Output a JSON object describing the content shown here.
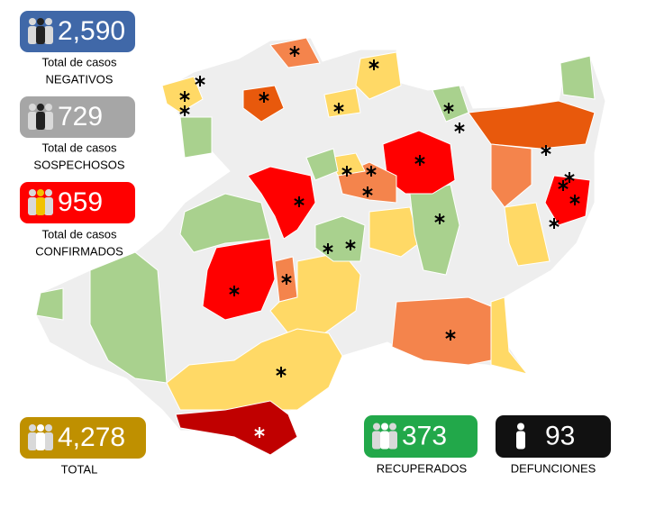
{
  "stats": [
    {
      "value": "2,590",
      "lines": [
        "Total de casos",
        "NEGATIVOS"
      ]
    },
    {
      "value": "729",
      "lines": [
        "Total de casos",
        "SOSPECHOSOS"
      ]
    },
    {
      "value": "959",
      "lines": [
        "Total de casos",
        "CONFIRMADOS"
      ]
    },
    {
      "value": "4,278",
      "lines": [
        "TOTAL"
      ]
    },
    {
      "value": "373",
      "lines": [
        "RECUPERADOS"
      ]
    },
    {
      "value": "93",
      "lines": [
        "DEFUNCIONES"
      ]
    }
  ]
}
